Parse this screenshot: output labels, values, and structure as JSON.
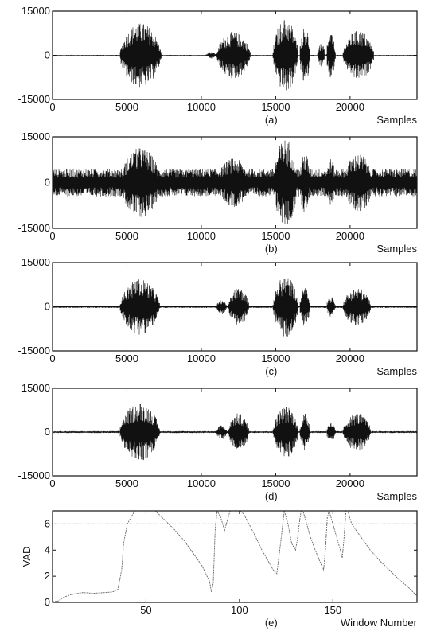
{
  "chart_data": [
    {
      "type": "line",
      "panel_label": "(a)",
      "xlabel": "Samples",
      "ylabel": "",
      "xlim": [
        0,
        24500
      ],
      "ylim": [
        -15000,
        15000
      ],
      "xticks": [
        "0",
        "5000",
        "10000",
        "15000",
        "20000"
      ],
      "yticks": [
        "15000",
        "0",
        "-15000"
      ],
      "noise_level": 150,
      "segments": [
        {
          "start": 4500,
          "end": 7300,
          "amplitude": 11000
        },
        {
          "start": 10300,
          "end": 11000,
          "amplitude": 1200
        },
        {
          "start": 11000,
          "end": 13300,
          "amplitude": 8000
        },
        {
          "start": 14800,
          "end": 16500,
          "amplitude": 12500
        },
        {
          "start": 16600,
          "end": 17300,
          "amplitude": 10000
        },
        {
          "start": 17800,
          "end": 18300,
          "amplitude": 4000
        },
        {
          "start": 18400,
          "end": 19000,
          "amplitude": 8000
        },
        {
          "start": 19500,
          "end": 21600,
          "amplitude": 8500
        }
      ]
    },
    {
      "type": "line",
      "panel_label": "(b)",
      "xlabel": "Samples",
      "ylabel": "",
      "xlim": [
        0,
        24500
      ],
      "ylim": [
        -15000,
        15000
      ],
      "xticks": [
        "0",
        "5000",
        "10000",
        "15000",
        "20000"
      ],
      "yticks": [
        "15000",
        "0",
        "-15000"
      ],
      "noise_level": 4500,
      "segments": [
        {
          "start": 4500,
          "end": 7300,
          "amplitude": 11500
        },
        {
          "start": 11000,
          "end": 13300,
          "amplitude": 8000
        },
        {
          "start": 14800,
          "end": 16500,
          "amplitude": 14500
        },
        {
          "start": 16600,
          "end": 17300,
          "amplitude": 10000
        },
        {
          "start": 18400,
          "end": 19000,
          "amplitude": 8000
        },
        {
          "start": 19500,
          "end": 21600,
          "amplitude": 9500
        }
      ]
    },
    {
      "type": "line",
      "panel_label": "(c)",
      "xlabel": "Samples",
      "ylabel": "",
      "xlim": [
        0,
        24500
      ],
      "ylim": [
        -15000,
        15000
      ],
      "xticks": [
        "0",
        "5000",
        "10000",
        "15000",
        "20000"
      ],
      "yticks": [
        "15000",
        "0",
        "-15000"
      ],
      "noise_level": 400,
      "segments": [
        {
          "start": 4500,
          "end": 7200,
          "amplitude": 9500
        },
        {
          "start": 11000,
          "end": 11700,
          "amplitude": 2500
        },
        {
          "start": 11800,
          "end": 13200,
          "amplitude": 6500
        },
        {
          "start": 14800,
          "end": 16500,
          "amplitude": 10500
        },
        {
          "start": 16600,
          "end": 17300,
          "amplitude": 7000
        },
        {
          "start": 18400,
          "end": 19000,
          "amplitude": 3500
        },
        {
          "start": 19500,
          "end": 21400,
          "amplitude": 6500
        }
      ]
    },
    {
      "type": "line",
      "panel_label": "(d)",
      "xlabel": "Samples",
      "ylabel": "",
      "xlim": [
        0,
        24500
      ],
      "ylim": [
        -15000,
        15000
      ],
      "xticks": [
        "0",
        "5000",
        "10000",
        "15000",
        "20000"
      ],
      "yticks": [
        "15000",
        "0",
        "-15000"
      ],
      "noise_level": 350,
      "segments": [
        {
          "start": 4500,
          "end": 7200,
          "amplitude": 10000
        },
        {
          "start": 11000,
          "end": 11700,
          "amplitude": 2500
        },
        {
          "start": 11800,
          "end": 13200,
          "amplitude": 6500
        },
        {
          "start": 14800,
          "end": 16500,
          "amplitude": 9000
        },
        {
          "start": 16600,
          "end": 17300,
          "amplitude": 6500
        },
        {
          "start": 18400,
          "end": 19000,
          "amplitude": 3500
        },
        {
          "start": 19500,
          "end": 21400,
          "amplitude": 6500
        }
      ]
    },
    {
      "type": "line",
      "panel_label": "(e)",
      "xlabel": "Window Number",
      "ylabel": "VAD",
      "xlim": [
        0,
        195
      ],
      "ylim": [
        0,
        7
      ],
      "xticks": [
        "50",
        "100",
        "150"
      ],
      "yticks": [
        "0",
        "2",
        "4",
        "6"
      ],
      "threshold": 6,
      "series": [
        {
          "x": [
            0,
            3,
            6,
            10,
            16,
            22,
            28,
            32,
            35,
            37,
            38,
            40,
            44,
            48,
            50,
            52,
            55,
            60,
            65,
            70,
            75,
            80,
            84,
            85,
            86,
            87,
            88,
            90,
            92,
            93,
            95,
            97,
            99,
            100,
            102,
            104,
            108,
            112,
            116,
            118,
            120,
            122,
            124,
            126,
            127,
            128,
            130,
            131,
            132,
            133,
            134,
            136,
            138,
            140,
            142,
            144,
            145,
            146,
            147,
            148,
            150,
            152,
            154,
            155,
            156,
            157,
            158,
            160,
            165,
            170,
            175,
            180,
            185,
            190,
            195
          ],
          "y": [
            0.05,
            0.1,
            0.4,
            0.6,
            0.75,
            0.7,
            0.75,
            0.8,
            1.0,
            2.5,
            4.5,
            6.0,
            7.0,
            7.0,
            7.0,
            7.0,
            7.0,
            6.3,
            5.6,
            4.8,
            3.8,
            2.8,
            1.6,
            0.8,
            1.5,
            5.5,
            7.0,
            6.5,
            5.5,
            6.0,
            7.0,
            7.0,
            7.0,
            7.0,
            6.8,
            6.3,
            5.2,
            4.0,
            3.0,
            2.5,
            2.2,
            4.5,
            7.0,
            6.0,
            5.2,
            4.5,
            4.0,
            4.8,
            6.0,
            7.0,
            7.0,
            6.0,
            5.0,
            4.2,
            3.5,
            2.8,
            2.5,
            4.0,
            6.5,
            7.0,
            6.0,
            5.0,
            4.0,
            3.4,
            5.0,
            7.0,
            7.0,
            6.0,
            5.0,
            4.0,
            3.2,
            2.5,
            1.8,
            1.2,
            0.5
          ]
        }
      ]
    }
  ]
}
